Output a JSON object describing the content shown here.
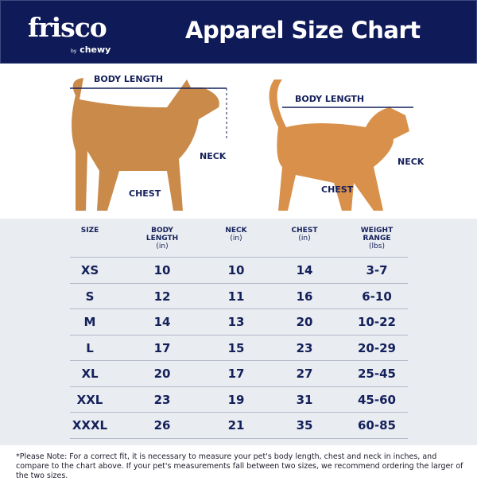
{
  "header": {
    "brand": "frisco",
    "byline_prefix": "by",
    "byline_brand": "chewy",
    "title": "Apparel Size Chart"
  },
  "dog": {
    "body_length": "BODY LENGTH",
    "neck": "NECK",
    "chest": "CHEST"
  },
  "cat": {
    "body_length": "BODY LENGTH",
    "neck": "NECK",
    "chest": "CHEST"
  },
  "table": {
    "headers": [
      {
        "label": "SIZE",
        "unit": ""
      },
      {
        "label": "BODY LENGTH",
        "unit": "(in)"
      },
      {
        "label": "NECK",
        "unit": "(in)"
      },
      {
        "label": "CHEST",
        "unit": "(in)"
      },
      {
        "label": "WEIGHT RANGE",
        "unit": "(lbs)"
      }
    ],
    "rows": [
      [
        "XS",
        "10",
        "10",
        "14",
        "3-7"
      ],
      [
        "S",
        "12",
        "11",
        "16",
        "6-10"
      ],
      [
        "M",
        "14",
        "13",
        "20",
        "10-22"
      ],
      [
        "L",
        "17",
        "15",
        "23",
        "20-29"
      ],
      [
        "XL",
        "20",
        "17",
        "27",
        "25-45"
      ],
      [
        "XXL",
        "23",
        "19",
        "31",
        "45-60"
      ],
      [
        "XXXL",
        "26",
        "21",
        "35",
        "60-85"
      ]
    ]
  },
  "note": "*Please Note: For a correct fit, it is necessary to measure your pet's body length, chest and neck in inches, and compare to the chart above. If your pet's measurements fall between two sizes, we recommend ordering the larger of the two sizes.",
  "colors": {
    "navy": "#0f1a58",
    "table_bg": "#e9ecf1",
    "dog": "#c98a4a",
    "cat": "#d9904a"
  }
}
